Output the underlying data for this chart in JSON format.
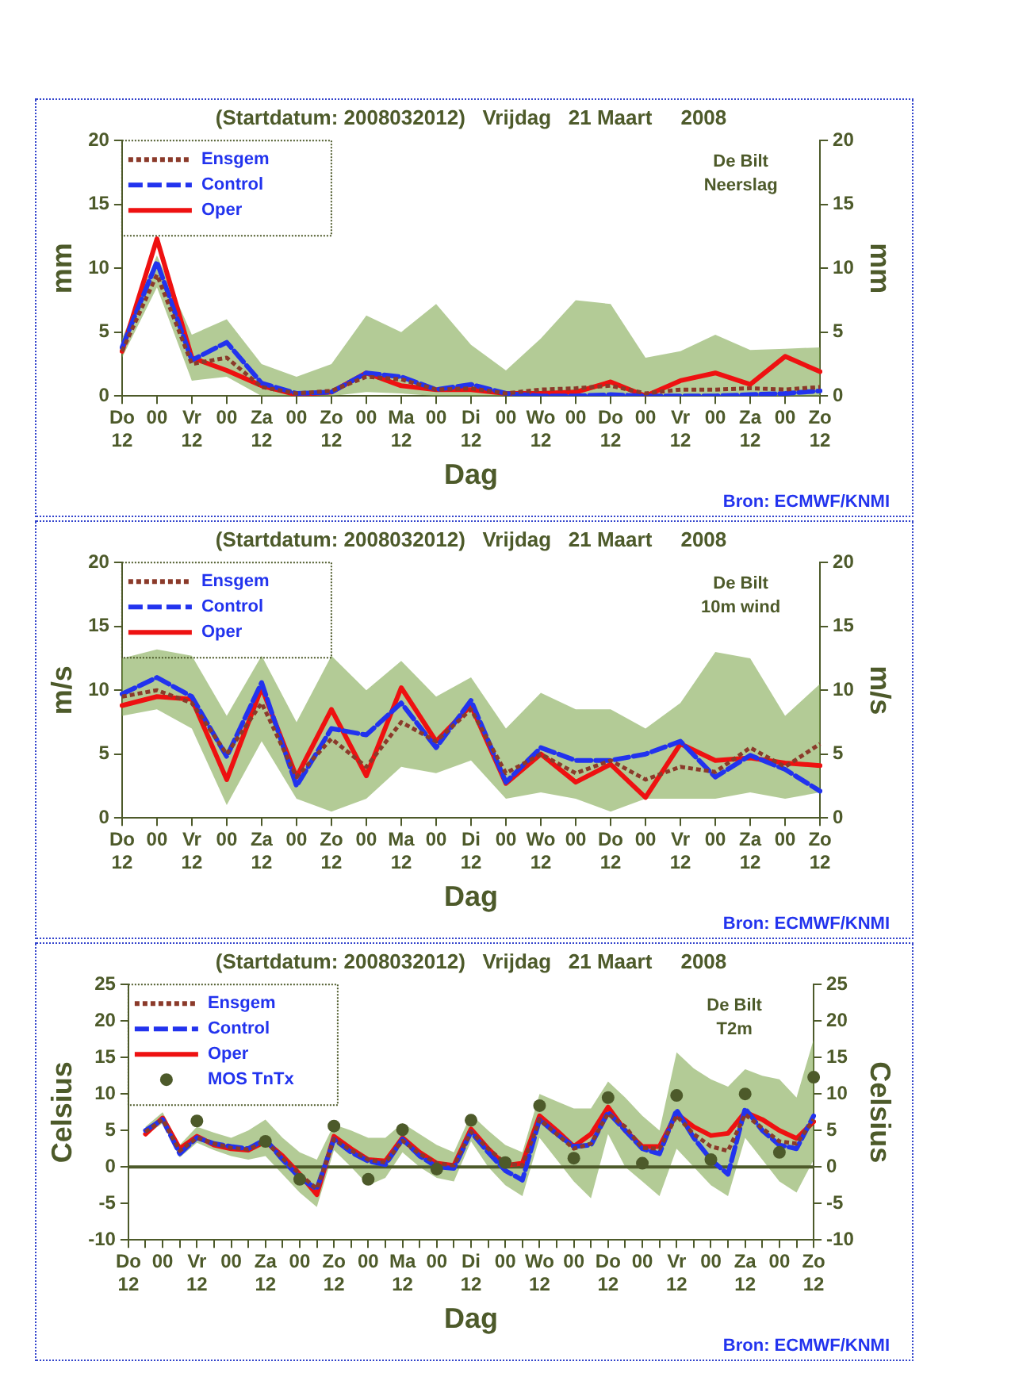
{
  "chart_data": [
    {
      "type": "line",
      "title": "(Startdatum: 2008032012)   Vrijdag   21 Maart     2008",
      "xlabel": "Dag",
      "ylabel": "mm",
      "y2label": "mm",
      "annotations": [
        "De Bilt\nNeerslag",
        "Bron: ECMWF/KNMI"
      ],
      "legend": "top left",
      "grid": false,
      "categories": [
        "Do\n12",
        "00",
        "Vr\n12",
        "00",
        "Za\n12",
        "00",
        "Zo\n12",
        "00",
        "Ma\n12",
        "00",
        "Di\n12",
        "00",
        "Wo\n12",
        "00",
        "Do\n12",
        "00",
        "Vr\n12",
        "00",
        "Za\n12",
        "00",
        "Zo\n12"
      ],
      "ylim": [
        0,
        20
      ],
      "yticks": [
        0,
        5,
        10,
        15,
        20
      ],
      "y2lim": [
        0,
        20
      ],
      "y2ticks": [
        0,
        5,
        10,
        15,
        20
      ],
      "series": [
        {
          "name": "Ensgem",
          "color": "#8b3a2a",
          "line_style": "dotted",
          "values": [
            3.5,
            9.5,
            2.5,
            3,
            0.7,
            0.2,
            0.4,
            1.5,
            1.3,
            0.5,
            0.6,
            0.2,
            0.5,
            0.6,
            0.8,
            0.2,
            0.5,
            0.5,
            0.6,
            0.5,
            0.7
          ],
          "lower": [
            3,
            8.5,
            1.2,
            1.5,
            0,
            0,
            0,
            0.3,
            0.2,
            0,
            0,
            0,
            0,
            0,
            0,
            0,
            0,
            0,
            0,
            0,
            0
          ],
          "upper": [
            4.5,
            11,
            4.8,
            6,
            2.5,
            1.5,
            2.5,
            6.3,
            5,
            7.2,
            4,
            2,
            4.5,
            7.5,
            7.2,
            3,
            3.5,
            4.8,
            3.6,
            3.7,
            3.8
          ]
        },
        {
          "name": "Control",
          "color": "#2233ee",
          "line_style": "dashed",
          "values": [
            3.8,
            10.5,
            2.8,
            4.2,
            1,
            0.2,
            0.3,
            1.8,
            1.5,
            0.5,
            0.9,
            0.2,
            0,
            0,
            0.1,
            0,
            0,
            0,
            0.1,
            0.2,
            0.4
          ]
        },
        {
          "name": "Oper",
          "color": "#ee1111",
          "line_style": "solid",
          "values": [
            3.5,
            12.3,
            3,
            2,
            0.8,
            0.1,
            0.3,
            1.8,
            0.8,
            0.5,
            0.5,
            0.2,
            0.2,
            0.3,
            1.1,
            0,
            1.2,
            1.8,
            0.9,
            3.1,
            1.9
          ]
        }
      ]
    },
    {
      "type": "line",
      "title": "(Startdatum: 2008032012)   Vrijdag   21 Maart     2008",
      "xlabel": "Dag",
      "ylabel": "m/s",
      "y2label": "m/s",
      "annotations": [
        "De Bilt\n10m wind",
        "Bron: ECMWF/KNMI"
      ],
      "legend": "top left",
      "grid": false,
      "categories": [
        "Do\n12",
        "00",
        "Vr\n12",
        "00",
        "Za\n12",
        "00",
        "Zo\n12",
        "00",
        "Ma\n12",
        "00",
        "Di\n12",
        "00",
        "Wo\n12",
        "00",
        "Do\n12",
        "00",
        "Vr\n12",
        "00",
        "Za\n12",
        "00",
        "Zo\n12"
      ],
      "ylim": [
        0,
        20
      ],
      "yticks": [
        0,
        5,
        10,
        15,
        20
      ],
      "y2lim": [
        0,
        20
      ],
      "y2ticks": [
        0,
        5,
        10,
        15,
        20
      ],
      "series": [
        {
          "name": "Ensgem",
          "color": "#8b3a2a",
          "line_style": "dotted",
          "values": [
            9.5,
            10,
            9,
            5,
            9,
            3.2,
            6.2,
            4,
            7.5,
            6,
            8.5,
            3.5,
            5,
            3.5,
            4.5,
            3,
            4,
            3.6,
            5.5,
            4,
            5.8
          ],
          "lower": [
            8,
            8.5,
            7,
            1,
            6,
            1.5,
            0.5,
            1.5,
            4,
            3.5,
            4.5,
            1.5,
            2,
            1.5,
            0.5,
            1.5,
            1.5,
            1.5,
            2,
            1.5,
            2
          ],
          "upper": [
            12.5,
            13.2,
            12.7,
            8,
            12.7,
            7.5,
            12.7,
            10,
            12.3,
            9.5,
            11,
            7,
            9.8,
            8.5,
            8.5,
            7,
            9,
            13,
            12.5,
            8,
            10.5
          ]
        },
        {
          "name": "Control",
          "color": "#2233ee",
          "line_style": "dashed",
          "values": [
            9.7,
            11,
            9.5,
            4.8,
            10.6,
            2.5,
            7,
            6.5,
            9,
            5.5,
            9.2,
            2.8,
            5.5,
            4.5,
            4.5,
            5,
            6,
            3.2,
            4.9,
            3.8,
            2.1
          ]
        },
        {
          "name": "Oper",
          "color": "#ee1111",
          "line_style": "solid",
          "values": [
            8.8,
            9.5,
            9.3,
            3,
            10.2,
            3.2,
            8.5,
            3.3,
            10.2,
            6,
            8.8,
            2.7,
            5,
            2.8,
            4.2,
            1.6,
            5.8,
            4.5,
            4.7,
            4.3,
            4.1
          ]
        }
      ]
    },
    {
      "type": "line",
      "title": "(Startdatum: 2008032012)   Vrijdag   21 Maart     2008",
      "xlabel": "Dag",
      "ylabel": "Celsius",
      "y2label": "Celsius",
      "annotations": [
        "De Bilt\nT2m",
        "Bron: ECMWF/KNMI"
      ],
      "legend": "top left",
      "grid": false,
      "categories": [
        "Do\n12",
        null,
        "00",
        null,
        "Vr\n12",
        null,
        "00",
        null,
        "Za\n12",
        null,
        "00",
        null,
        "Zo\n12",
        null,
        "00",
        null,
        "Ma\n12",
        null,
        "00",
        null,
        "Di\n12",
        null,
        "00",
        null,
        "Wo\n12",
        null,
        "00",
        null,
        "Do\n12",
        null,
        "00",
        null,
        "Vr\n12",
        null,
        "00",
        null,
        "Za\n12",
        null,
        "00",
        null,
        "Zo\n12"
      ],
      "ylim": [
        -10,
        25
      ],
      "yticks": [
        -10,
        -5,
        0,
        5,
        10,
        15,
        20,
        25
      ],
      "y2lim": [
        -10,
        25
      ],
      "y2ticks": [
        -10,
        -5,
        0,
        5,
        10,
        15,
        20,
        25
      ],
      "ref_lines": [
        {
          "axis": "y",
          "value": 0,
          "color": "#4d5a2a"
        }
      ],
      "series": [
        {
          "name": "Ensgem",
          "color": "#8b3a2a",
          "line_style": "dotted",
          "values": [
            null,
            4.8,
            6.5,
            2.2,
            4,
            3.2,
            2.6,
            2.4,
            3.5,
            1.2,
            -1,
            -3,
            3.8,
            2.3,
            1,
            0.6,
            3.6,
            1.8,
            0.5,
            0.2,
            4.8,
            2.5,
            0.5,
            0.2,
            6.5,
            4.5,
            2.5,
            3.2,
            7.3,
            5.5,
            2.6,
            2.5,
            7,
            4.5,
            2.8,
            2.2,
            7.2,
            5.3,
            3.5,
            3.2,
            6.5
          ],
          "lower": [
            null,
            4.3,
            6,
            1.3,
            3.3,
            2.3,
            1.5,
            1,
            1.5,
            -1,
            -3.5,
            -5.5,
            2.3,
            0,
            -2.5,
            -1.5,
            2,
            0,
            -1.5,
            -2,
            3.5,
            0,
            -2.5,
            -4,
            4,
            1,
            -2,
            -4.3,
            4.5,
            0,
            -2,
            -4,
            2.5,
            0,
            -2.5,
            -4,
            4,
            1,
            -2,
            -3.5,
            1
          ],
          "upper": [
            null,
            5.5,
            7.5,
            3,
            5.5,
            4.7,
            4,
            5,
            6.5,
            4,
            2,
            1,
            5.8,
            5,
            4,
            4,
            6,
            4.5,
            3,
            2,
            7.2,
            5,
            3,
            2,
            10,
            9,
            8,
            8,
            11.7,
            9.5,
            7,
            5,
            15.7,
            13.5,
            12,
            11,
            13.4,
            12.5,
            12,
            9.5,
            17.5
          ]
        },
        {
          "name": "Control",
          "color": "#2233ee",
          "line_style": "dashed",
          "values": [
            null,
            5,
            6.5,
            1.8,
            4,
            3.2,
            2.8,
            2.5,
            3.8,
            1,
            -1.5,
            -3,
            3.8,
            2,
            0.8,
            0.3,
            3.8,
            1.5,
            0,
            -0.2,
            4.8,
            2,
            -0.5,
            -1.8,
            6.5,
            4.5,
            2.8,
            3,
            7.5,
            5,
            2.5,
            1.8,
            7.8,
            4,
            1,
            -1,
            8,
            5,
            3,
            2.5,
            7
          ]
        },
        {
          "name": "Oper",
          "color": "#ee1111",
          "line_style": "solid",
          "values": [
            null,
            4.5,
            6.7,
            2.5,
            4.2,
            3,
            2.5,
            2.3,
            3.5,
            1.5,
            -1,
            -3.8,
            4.2,
            2.5,
            1,
            0.8,
            4,
            2,
            0.5,
            0.2,
            5.2,
            2.5,
            0.2,
            0.5,
            7,
            5,
            2.8,
            4.5,
            8.2,
            5,
            2.8,
            2.8,
            7.3,
            5.5,
            4.3,
            4.6,
            7.5,
            6.5,
            5,
            3.9,
            6.2
          ]
        },
        {
          "name": "MOS TnTx",
          "type": "scatter",
          "marker": "circle",
          "color": "#4d5a2a",
          "values": [
            null,
            null,
            null,
            null,
            6.3,
            null,
            null,
            null,
            3.5,
            null,
            -1.7,
            null,
            5.6,
            null,
            -1.7,
            null,
            5.1,
            null,
            -0.3,
            null,
            6.4,
            null,
            0.6,
            null,
            8.4,
            null,
            1.2,
            null,
            9.5,
            null,
            0.5,
            null,
            9.8,
            null,
            1,
            null,
            10,
            null,
            2,
            null,
            12.3
          ]
        }
      ]
    }
  ]
}
